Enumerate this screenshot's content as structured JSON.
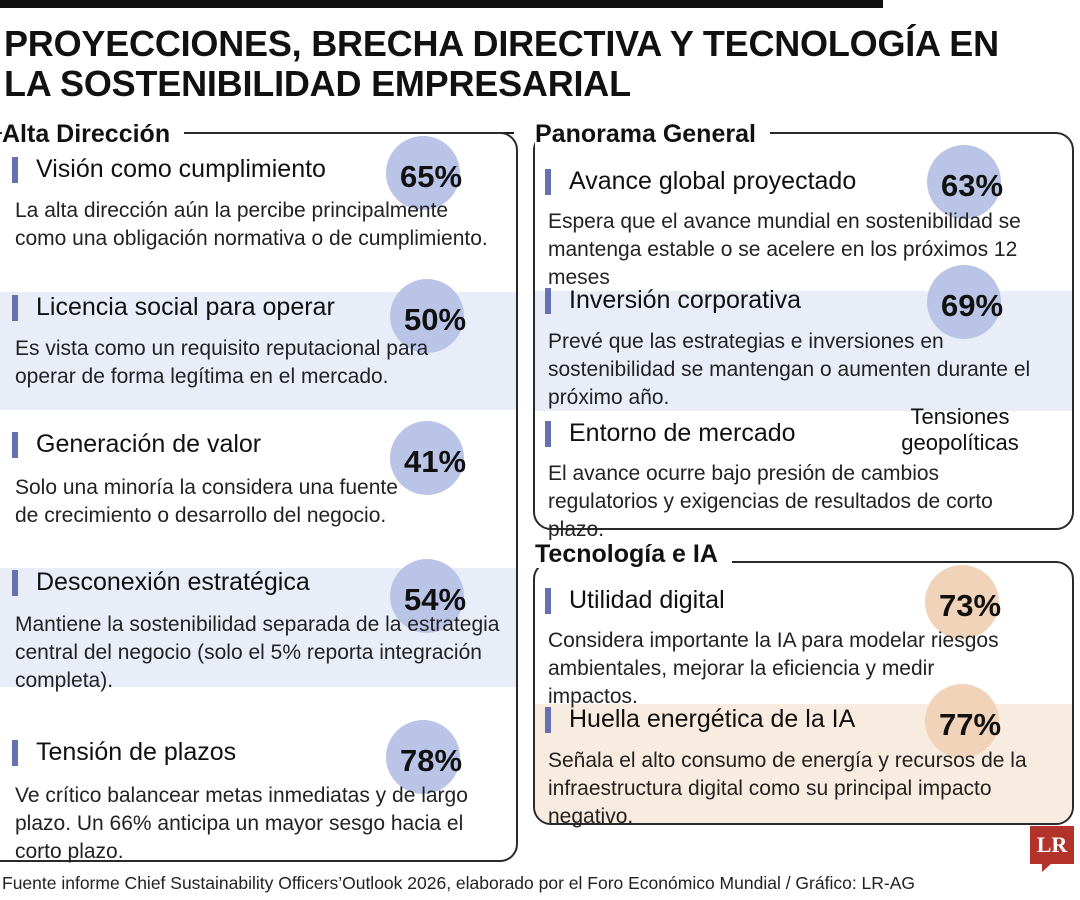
{
  "title": "PROYECCIONES, BRECHA DIRECTIVA Y TECNOLOGÍA EN LA SOSTENIBILIDAD EMPRESARIAL",
  "colors": {
    "accent_bar": "#6671b4",
    "badge_blue": "#bac4e6",
    "badge_peach": "#f1d3b9",
    "band_blue": "#e9edf7",
    "band_peach": "#f8ebdf",
    "logo_red": "#b3332b"
  },
  "alta_direccion": {
    "heading": "Alta Dirección",
    "items": [
      {
        "title": "Visión como cumplimiento",
        "percent": "65%",
        "value": 65,
        "description": "La alta dirección aún la percibe principalmente como una obligación normativa o de cumplimiento."
      },
      {
        "title": "Licencia social para operar",
        "percent": "50%",
        "value": 50,
        "description": "Es vista como un requisito reputacional para operar de forma legítima en el mercado."
      },
      {
        "title": "Generación de valor",
        "percent": "41%",
        "value": 41,
        "description": "Solo una minoría la considera una fuente de crecimiento o desarrollo del negocio."
      },
      {
        "title": "Desconexión estratégica",
        "percent": "54%",
        "value": 54,
        "description": "Mantiene la sostenibilidad separada de la estrategia central del negocio (solo el 5% reporta integración completa)."
      },
      {
        "title": "Tensión de plazos",
        "percent": "78%",
        "value": 78,
        "description": "Ve crítico balancear metas inmediatas y de largo plazo. Un 66% anticipa un mayor sesgo hacia el corto plazo."
      }
    ]
  },
  "panorama_general": {
    "heading": "Panorama General",
    "items": [
      {
        "title": "Avance global proyectado",
        "percent": "63%",
        "value": 63,
        "description": "Espera que el avance mundial en sostenibilidad se mantenga estable o se acelere en los próximos 12 meses"
      },
      {
        "title": "Inversión corporativa",
        "percent": "69%",
        "value": 69,
        "description": "Prevé que las estrategias e inversiones en sostenibilidad se mantengan o aumenten durante el próximo año."
      },
      {
        "title": "Entorno de mercado",
        "side_label": "Tensiones geopolíticas",
        "description": "El avance ocurre bajo presión de cambios regulatorios y exigencias de resultados de corto plazo."
      }
    ]
  },
  "tecnologia_ia": {
    "heading": "Tecnología e IA",
    "items": [
      {
        "title": "Utilidad digital",
        "percent": "73%",
        "value": 73,
        "description": "Considera importante la IA para modelar riesgos ambientales, mejorar la eficiencia y medir impactos."
      },
      {
        "title": "Huella energética de la IA",
        "percent": "77%",
        "value": 77,
        "description": "Señala el alto consumo de energía y recursos de la infraestructura digital como su principal impacto negativo."
      }
    ]
  },
  "footer": "Fuente informe Chief Sustainability Officers’Outlook 2026, elaborado por el Foro Económico Mundial / Gráfico: LR-AG",
  "logo": {
    "text": "LR"
  }
}
